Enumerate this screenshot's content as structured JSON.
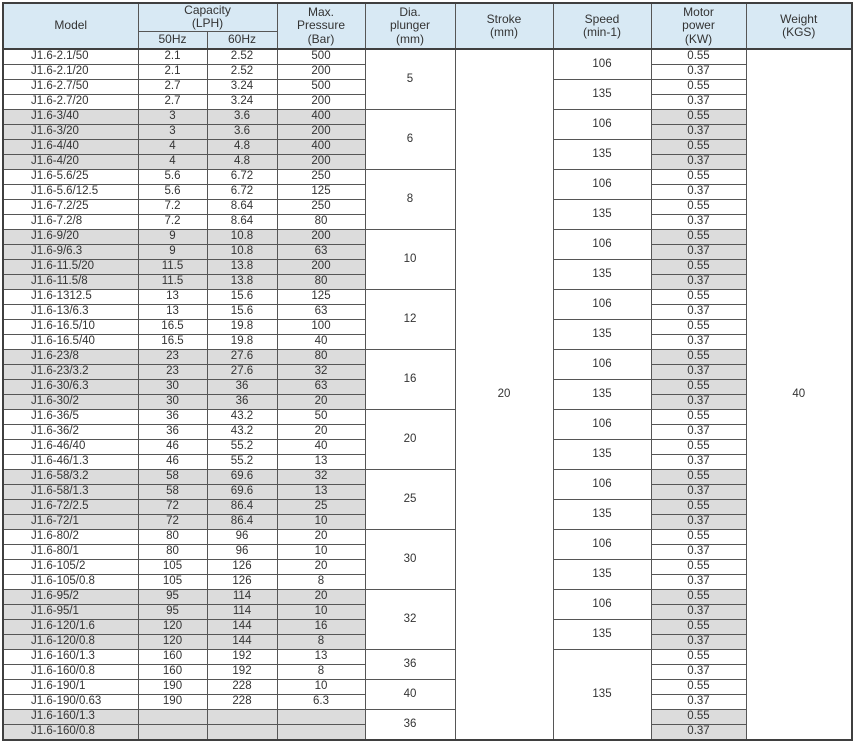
{
  "table": {
    "header": {
      "model": "Model",
      "capacity": "Capacity\n(LPH)",
      "hz50": "50Hz",
      "hz60": "60Hz",
      "pressure": "Max.\nPressure\n(Bar)",
      "dia": "Dia.\nplunger\n(mm)",
      "stroke": "Stroke\n(mm)",
      "speed": "Speed\n(min-1)",
      "motor": "Motor\npower\n(KW)",
      "weight": "Weight\n(KGS)"
    },
    "stroke_mm": "20",
    "weight_kgs": "40",
    "colors": {
      "header_bg": "#d8e9f4",
      "shaded_row_bg": "#dcdcdc",
      "border": "#565656",
      "text": "#333333"
    },
    "rows": [
      {
        "model": "J1.6-2.1/50",
        "c50": "2.1",
        "c60": "2.52",
        "p": "500",
        "kw": "0.55",
        "shaded": false
      },
      {
        "model": "J1.6-2.1/20",
        "c50": "2.1",
        "c60": "2.52",
        "p": "200",
        "kw": "0.37",
        "shaded": false
      },
      {
        "model": "J1.6-2.7/50",
        "c50": "2.7",
        "c60": "3.24",
        "p": "500",
        "kw": "0.55",
        "shaded": false
      },
      {
        "model": "J1.6-2.7/20",
        "c50": "2.7",
        "c60": "3.24",
        "p": "200",
        "kw": "0.37",
        "shaded": false
      },
      {
        "model": "J1.6-3/40",
        "c50": "3",
        "c60": "3.6",
        "p": "400",
        "kw": "0.55",
        "shaded": true
      },
      {
        "model": "J1.6-3/20",
        "c50": "3",
        "c60": "3.6",
        "p": "200",
        "kw": "0.37",
        "shaded": true
      },
      {
        "model": "J1.6-4/40",
        "c50": "4",
        "c60": "4.8",
        "p": "400",
        "kw": "0.55",
        "shaded": true
      },
      {
        "model": "J1.6-4/20",
        "c50": "4",
        "c60": "4.8",
        "p": "200",
        "kw": "0.37",
        "shaded": true
      },
      {
        "model": "J1.6-5.6/25",
        "c50": "5.6",
        "c60": "6.72",
        "p": "250",
        "kw": "0.55",
        "shaded": false
      },
      {
        "model": "J1.6-5.6/12.5",
        "c50": "5.6",
        "c60": "6.72",
        "p": "125",
        "kw": "0.37",
        "shaded": false
      },
      {
        "model": "J1.6-7.2/25",
        "c50": "7.2",
        "c60": "8.64",
        "p": "250",
        "kw": "0.55",
        "shaded": false
      },
      {
        "model": "J1.6-7.2/8",
        "c50": "7.2",
        "c60": "8.64",
        "p": "80",
        "kw": "0.37",
        "shaded": false
      },
      {
        "model": "J1.6-9/20",
        "c50": "9",
        "c60": "10.8",
        "p": "200",
        "kw": "0.55",
        "shaded": true
      },
      {
        "model": "J1.6-9/6.3",
        "c50": "9",
        "c60": "10.8",
        "p": "63",
        "kw": "0.37",
        "shaded": true
      },
      {
        "model": "J1.6-11.5/20",
        "c50": "11.5",
        "c60": "13.8",
        "p": "200",
        "kw": "0.55",
        "shaded": true
      },
      {
        "model": "J1.6-11.5/8",
        "c50": "11.5",
        "c60": "13.8",
        "p": "80",
        "kw": "0.37",
        "shaded": true
      },
      {
        "model": "J1.6-1312.5",
        "c50": "13",
        "c60": "15.6",
        "p": "125",
        "kw": "0.55",
        "shaded": false
      },
      {
        "model": "J1.6-13/6.3",
        "c50": "13",
        "c60": "15.6",
        "p": "63",
        "kw": "0.37",
        "shaded": false
      },
      {
        "model": "J1.6-16.5/10",
        "c50": "16.5",
        "c60": "19.8",
        "p": "100",
        "kw": "0.55",
        "shaded": false
      },
      {
        "model": "J1.6-16.5/40",
        "c50": "16.5",
        "c60": "19.8",
        "p": "40",
        "kw": "0.37",
        "shaded": false
      },
      {
        "model": "J1.6-23/8",
        "c50": "23",
        "c60": "27.6",
        "p": "80",
        "kw": "0.55",
        "shaded": true
      },
      {
        "model": "J1.6-23/3.2",
        "c50": "23",
        "c60": "27.6",
        "p": "32",
        "kw": "0.37",
        "shaded": true
      },
      {
        "model": "J1.6-30/6.3",
        "c50": "30",
        "c60": "36",
        "p": "63",
        "kw": "0.55",
        "shaded": true
      },
      {
        "model": "J1.6-30/2",
        "c50": "30",
        "c60": "36",
        "p": "20",
        "kw": "0.37",
        "shaded": true
      },
      {
        "model": "J1.6-36/5",
        "c50": "36",
        "c60": "43.2",
        "p": "50",
        "kw": "0.55",
        "shaded": false
      },
      {
        "model": "J1.6-36/2",
        "c50": "36",
        "c60": "43.2",
        "p": "20",
        "kw": "0.37",
        "shaded": false
      },
      {
        "model": "J1.6-46/40",
        "c50": "46",
        "c60": "55.2",
        "p": "40",
        "kw": "0.55",
        "shaded": false
      },
      {
        "model": "J1.6-46/1.3",
        "c50": "46",
        "c60": "55.2",
        "p": "13",
        "kw": "0.37",
        "shaded": false
      },
      {
        "model": "J1.6-58/3.2",
        "c50": "58",
        "c60": "69.6",
        "p": "32",
        "kw": "0.55",
        "shaded": true
      },
      {
        "model": "J1.6-58/1.3",
        "c50": "58",
        "c60": "69.6",
        "p": "13",
        "kw": "0.37",
        "shaded": true
      },
      {
        "model": "J1.6-72/2.5",
        "c50": "72",
        "c60": "86.4",
        "p": "25",
        "kw": "0.55",
        "shaded": true
      },
      {
        "model": "J1.6-72/1",
        "c50": "72",
        "c60": "86.4",
        "p": "10",
        "kw": "0.37",
        "shaded": true
      },
      {
        "model": "J1.6-80/2",
        "c50": "80",
        "c60": "96",
        "p": "20",
        "kw": "0.55",
        "shaded": false
      },
      {
        "model": "J1.6-80/1",
        "c50": "80",
        "c60": "96",
        "p": "10",
        "kw": "0.37",
        "shaded": false
      },
      {
        "model": "J1.6-105/2",
        "c50": "105",
        "c60": "126",
        "p": "20",
        "kw": "0.55",
        "shaded": false
      },
      {
        "model": "J1.6-105/0.8",
        "c50": "105",
        "c60": "126",
        "p": "8",
        "kw": "0.37",
        "shaded": false
      },
      {
        "model": "J1.6-95/2",
        "c50": "95",
        "c60": "114",
        "p": "20",
        "kw": "0.55",
        "shaded": true
      },
      {
        "model": "J1.6-95/1",
        "c50": "95",
        "c60": "114",
        "p": "10",
        "kw": "0.37",
        "shaded": true
      },
      {
        "model": "J1.6-120/1.6",
        "c50": "120",
        "c60": "144",
        "p": "16",
        "kw": "0.55",
        "shaded": true
      },
      {
        "model": "J1.6-120/0.8",
        "c50": "120",
        "c60": "144",
        "p": "8",
        "kw": "0.37",
        "shaded": true
      },
      {
        "model": "J1.6-160/1.3",
        "c50": "160",
        "c60": "192",
        "p": "13",
        "kw": "0.55",
        "shaded": false
      },
      {
        "model": "J1.6-160/0.8",
        "c50": "160",
        "c60": "192",
        "p": "8",
        "kw": "0.37",
        "shaded": false
      },
      {
        "model": "J1.6-190/1",
        "c50": "190",
        "c60": "228",
        "p": "10",
        "kw": "0.55",
        "shaded": false
      },
      {
        "model": "J1.6-190/0.63",
        "c50": "190",
        "c60": "228",
        "p": "6.3",
        "kw": "0.37",
        "shaded": false
      },
      {
        "model": "J1.6-160/1.3",
        "c50": "",
        "c60": "",
        "p": "",
        "kw": "0.55",
        "shaded": true
      },
      {
        "model": "J1.6-160/0.8",
        "c50": "",
        "c60": "",
        "p": "",
        "kw": "0.37",
        "shaded": true
      }
    ],
    "dia_groups": [
      {
        "start": 0,
        "span": 4,
        "value": "5"
      },
      {
        "start": 4,
        "span": 4,
        "value": "6"
      },
      {
        "start": 8,
        "span": 4,
        "value": "8"
      },
      {
        "start": 12,
        "span": 4,
        "value": "10"
      },
      {
        "start": 16,
        "span": 4,
        "value": "12"
      },
      {
        "start": 20,
        "span": 4,
        "value": "16"
      },
      {
        "start": 24,
        "span": 4,
        "value": "20"
      },
      {
        "start": 28,
        "span": 4,
        "value": "25"
      },
      {
        "start": 32,
        "span": 4,
        "value": "30"
      },
      {
        "start": 36,
        "span": 4,
        "value": "32"
      },
      {
        "start": 40,
        "span": 2,
        "value": "36"
      },
      {
        "start": 42,
        "span": 2,
        "value": "40"
      },
      {
        "start": 44,
        "span": 2,
        "value": "36"
      }
    ],
    "speed_groups": [
      {
        "start": 0,
        "span": 2,
        "value": "106"
      },
      {
        "start": 2,
        "span": 2,
        "value": "135"
      },
      {
        "start": 4,
        "span": 2,
        "value": "106"
      },
      {
        "start": 6,
        "span": 2,
        "value": "135"
      },
      {
        "start": 8,
        "span": 2,
        "value": "106"
      },
      {
        "start": 10,
        "span": 2,
        "value": "135"
      },
      {
        "start": 12,
        "span": 2,
        "value": "106"
      },
      {
        "start": 14,
        "span": 2,
        "value": "135"
      },
      {
        "start": 16,
        "span": 2,
        "value": "106"
      },
      {
        "start": 18,
        "span": 2,
        "value": "135"
      },
      {
        "start": 20,
        "span": 2,
        "value": "106"
      },
      {
        "start": 22,
        "span": 2,
        "value": "135"
      },
      {
        "start": 24,
        "span": 2,
        "value": "106"
      },
      {
        "start": 26,
        "span": 2,
        "value": "135"
      },
      {
        "start": 28,
        "span": 2,
        "value": "106"
      },
      {
        "start": 30,
        "span": 2,
        "value": "135"
      },
      {
        "start": 32,
        "span": 2,
        "value": "106"
      },
      {
        "start": 34,
        "span": 2,
        "value": "135"
      },
      {
        "start": 36,
        "span": 2,
        "value": "106"
      },
      {
        "start": 38,
        "span": 2,
        "value": "135"
      },
      {
        "start": 40,
        "span": 6,
        "value": "135"
      }
    ]
  }
}
